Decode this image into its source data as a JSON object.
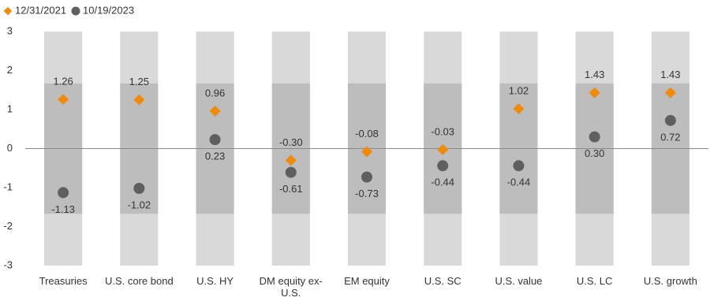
{
  "chart_data": {
    "type": "dot",
    "categories": [
      "Treasuries",
      "U.S. core bond",
      "U.S. HY",
      "DM equity ex-U.S.",
      "EM equity",
      "U.S. SC",
      "U.S. value",
      "U.S. LC",
      "U.S. growth"
    ],
    "series": [
      {
        "name": "12/31/2021",
        "color": "#f08a0c",
        "marker": "diamond",
        "values": [
          1.26,
          1.25,
          0.96,
          -0.3,
          -0.08,
          -0.03,
          1.02,
          1.43,
          1.43
        ],
        "value_labels": [
          "1.26",
          "1.25",
          "0.96",
          "-0.30",
          "-0.08",
          "-0.03",
          "1.02",
          "1.43",
          "1.43"
        ]
      },
      {
        "name": "10/19/2023",
        "color": "#5f5f5f",
        "marker": "circle",
        "values": [
          -1.13,
          -1.02,
          0.23,
          -0.61,
          -0.73,
          -0.44,
          -0.44,
          0.3,
          0.72
        ],
        "value_labels": [
          "-1.13",
          "-1.02",
          "0.23",
          "-0.61",
          "-0.73",
          "-0.44",
          "-0.44",
          "0.30",
          "0.72"
        ]
      }
    ],
    "bands": [
      {
        "range": [
          -3,
          3
        ],
        "color": "#d9d9d9"
      },
      {
        "range": [
          -1.67,
          1.67
        ],
        "color": "#bdbdbd"
      }
    ],
    "ylim": [
      -3,
      3
    ],
    "yticks": [
      -3,
      -2,
      -1,
      0,
      1,
      2,
      3
    ],
    "legend": "top-left"
  }
}
